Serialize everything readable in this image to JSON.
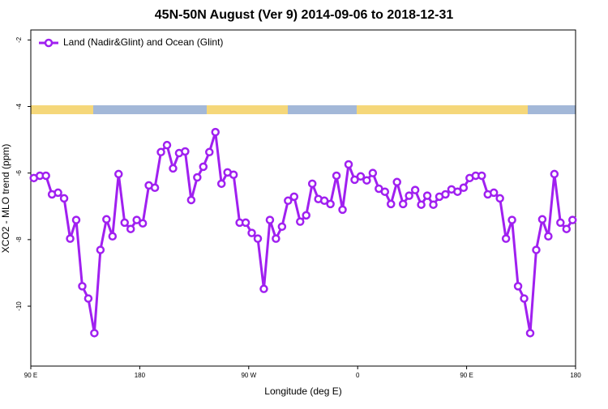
{
  "chart_data": {
    "type": "line",
    "title": "45N-50N August (Ver 9)   2014-09-06 to 2018-12-31",
    "x_label": "Longitude (deg E)",
    "y_label": "XCO2 - MLO trend (ppm)",
    "legend_position": "top-left",
    "xlim": [
      90,
      540
    ],
    "ylim": [
      -11.8,
      -1.7
    ],
    "xticks": [
      {
        "value": 90,
        "label": "90 E"
      },
      {
        "value": 180,
        "label": "180"
      },
      {
        "value": 270,
        "label": "90 W"
      },
      {
        "value": 360,
        "label": "0"
      },
      {
        "value": 450,
        "label": "90 E"
      },
      {
        "value": 540,
        "label": "180"
      }
    ],
    "yticks": [
      -2,
      -4,
      -6,
      -8,
      -10
    ],
    "x": [
      92.5,
      97.5,
      102.5,
      107.5,
      112.5,
      117.5,
      122.5,
      127.5,
      132.5,
      137.5,
      142.5,
      147.5,
      152.5,
      157.5,
      162.5,
      167.5,
      172.5,
      177.5,
      182.5,
      187.5,
      192.5,
      197.5,
      202.5,
      207.5,
      212.5,
      217.5,
      222.5,
      227.5,
      232.5,
      237.5,
      242.5,
      247.5,
      252.5,
      257.5,
      262.5,
      267.5,
      272.5,
      277.5,
      282.5,
      287.5,
      292.5,
      297.5,
      302.5,
      307.5,
      312.5,
      317.5,
      322.5,
      327.5,
      332.5,
      337.5,
      342.5,
      347.5,
      352.5,
      357.5,
      362.5,
      367.5,
      372.5,
      377.5,
      382.5,
      387.5,
      392.5,
      397.5,
      402.5,
      407.5,
      412.5,
      417.5,
      422.5,
      427.5,
      432.5,
      437.5,
      442.5,
      447.5,
      452.5,
      457.5,
      462.5,
      467.5,
      472.5,
      477.5,
      482.5,
      487.5,
      492.5,
      497.5,
      502.5,
      507.5,
      512.5,
      517.5,
      522.5,
      527.5,
      532.5,
      537.5
    ],
    "series": [
      {
        "name": "Land (Nadir&Glint) and Ocean (Glint)",
        "color": "#a020f0",
        "values": [
          -6.15,
          -6.08,
          -6.08,
          -6.64,
          -6.59,
          -6.76,
          -7.97,
          -7.41,
          -9.4,
          -9.77,
          -10.81,
          -8.31,
          -7.39,
          -7.9,
          -6.03,
          -7.49,
          -7.68,
          -7.41,
          -7.51,
          -6.37,
          -6.44,
          -5.37,
          -5.16,
          -5.86,
          -5.4,
          -5.35,
          -6.81,
          -6.13,
          -5.81,
          -5.37,
          -4.77,
          -6.32,
          -5.98,
          -6.05,
          -7.49,
          -7.49,
          -7.8,
          -7.97,
          -9.48,
          -7.41,
          -7.97,
          -7.61,
          -6.83,
          -6.71,
          -7.46,
          -7.27,
          -6.32,
          -6.78,
          -6.83,
          -6.93,
          -6.08,
          -7.1,
          -5.74,
          -6.2,
          -6.1,
          -6.22,
          -6.0,
          -6.47,
          -6.56,
          -6.93,
          -6.27,
          -6.93,
          -6.68,
          -6.51,
          -6.95,
          -6.68,
          -6.95,
          -6.71,
          -6.64,
          -6.49,
          -6.56,
          -6.44,
          -6.15,
          -6.08,
          -6.08,
          -6.64,
          -6.59,
          -6.76,
          -7.97,
          -7.41,
          -9.4,
          -9.77,
          -10.81,
          -8.31,
          -7.39,
          -7.9,
          -6.03,
          -7.49,
          -7.68,
          -7.41
        ]
      }
    ]
  }
}
